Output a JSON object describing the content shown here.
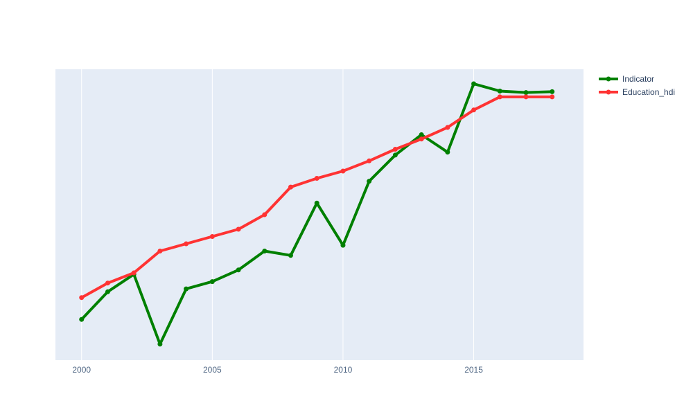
{
  "chart_data": {
    "type": "line",
    "title": "",
    "xlabel": "",
    "ylabel": "",
    "x": [
      2000,
      2001,
      2002,
      2003,
      2004,
      2005,
      2006,
      2007,
      2008,
      2009,
      2010,
      2011,
      2012,
      2013,
      2014,
      2015,
      2016,
      2017,
      2018
    ],
    "xlim": [
      1999,
      2019.2
    ],
    "ylim": [
      0,
      100
    ],
    "x_ticks": [
      2000,
      2005,
      2010,
      2015
    ],
    "y_ticks_visible": false,
    "grid": true,
    "legend_position": "top-right",
    "plot_background": "#e5ecf6",
    "series": [
      {
        "name": "Indicator",
        "color": "#008000",
        "values": [
          14.0,
          23.5,
          29.5,
          5.5,
          24.5,
          27.0,
          31.0,
          37.5,
          36.0,
          54.0,
          39.5,
          61.5,
          70.5,
          77.5,
          71.5,
          95.0,
          92.5,
          92.0,
          92.3
        ]
      },
      {
        "name": "Education_hdi",
        "color": "#ff3333",
        "values": [
          21.5,
          26.5,
          30.0,
          37.5,
          40.0,
          42.5,
          45.0,
          50.0,
          59.5,
          62.5,
          65.0,
          68.5,
          72.5,
          76.0,
          80.0,
          86.0,
          90.5,
          90.5,
          90.5
        ]
      }
    ]
  }
}
